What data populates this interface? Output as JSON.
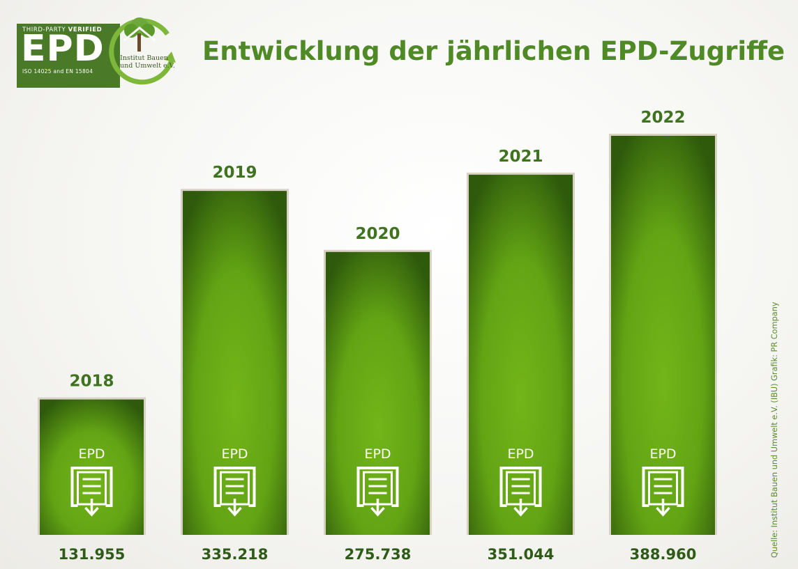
{
  "title": "Entwicklung der jährlichen EPD-Zugriffe",
  "badge": {
    "top_text": "THIRD-PARTY",
    "top_bold": "VERIFIED",
    "main": "EPD",
    "iso": "ISO 14025 and EN 15804",
    "institute_line1": "Institut Bauen",
    "institute_line2": "und Umwelt e.V."
  },
  "source": "Quelle: Institut Bauen und Umwelt e.V. (IBU)   Grafik: PR Company",
  "icon_label": "EPD",
  "colors": {
    "title": "#4f8a27",
    "bar_light": "#72b519",
    "bar_dark": "#2f5a0c",
    "frame": "#d8d2c5",
    "value_text": "#2f5b18"
  },
  "chart_data": {
    "type": "bar",
    "categories": [
      "2018",
      "2019",
      "2020",
      "2021",
      "2022"
    ],
    "values": [
      131955,
      335218,
      275738,
      351044,
      388960
    ],
    "value_labels": [
      "131.955",
      "335.218",
      "275.738",
      "351.044",
      "388.960"
    ],
    "title": "Entwicklung der jährlichen EPD-Zugriffe",
    "xlabel": "",
    "ylabel": "",
    "ylim": [
      0,
      388960
    ],
    "grid": false,
    "legend": "none"
  }
}
